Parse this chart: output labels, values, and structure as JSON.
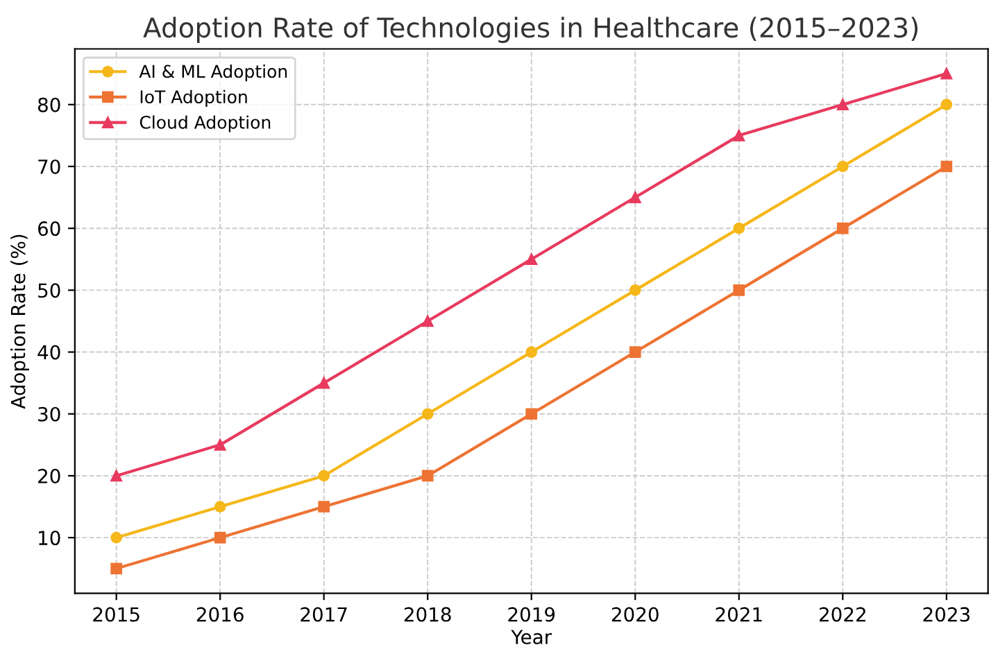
{
  "chart_data": {
    "type": "line",
    "title": "Adoption Rate of Technologies in Healthcare (2015–2023)",
    "xlabel": "Year",
    "ylabel": "Adoption Rate (%)",
    "x": [
      2015,
      2016,
      2017,
      2018,
      2019,
      2020,
      2021,
      2022,
      2023
    ],
    "series": [
      {
        "name": "AI & ML Adoption",
        "color": "#f5b719",
        "marker": "circle",
        "values": [
          10,
          15,
          20,
          30,
          40,
          50,
          60,
          70,
          80
        ]
      },
      {
        "name": "IoT Adoption",
        "color": "#ee7333",
        "marker": "square",
        "values": [
          5,
          10,
          15,
          20,
          30,
          40,
          50,
          60,
          70
        ]
      },
      {
        "name": "Cloud Adoption",
        "color": "#e83a5e",
        "marker": "triangle",
        "values": [
          20,
          25,
          35,
          45,
          55,
          65,
          75,
          80,
          85
        ]
      }
    ],
    "xlim": [
      2014.6,
      2023.4
    ],
    "xticks": [
      2015,
      2016,
      2017,
      2018,
      2019,
      2020,
      2021,
      2022,
      2023
    ],
    "ylim": [
      1,
      89
    ],
    "yticks": [
      10,
      20,
      30,
      40,
      50,
      60,
      70,
      80
    ],
    "grid": true,
    "legend": "top left",
    "line_style": "solid"
  }
}
